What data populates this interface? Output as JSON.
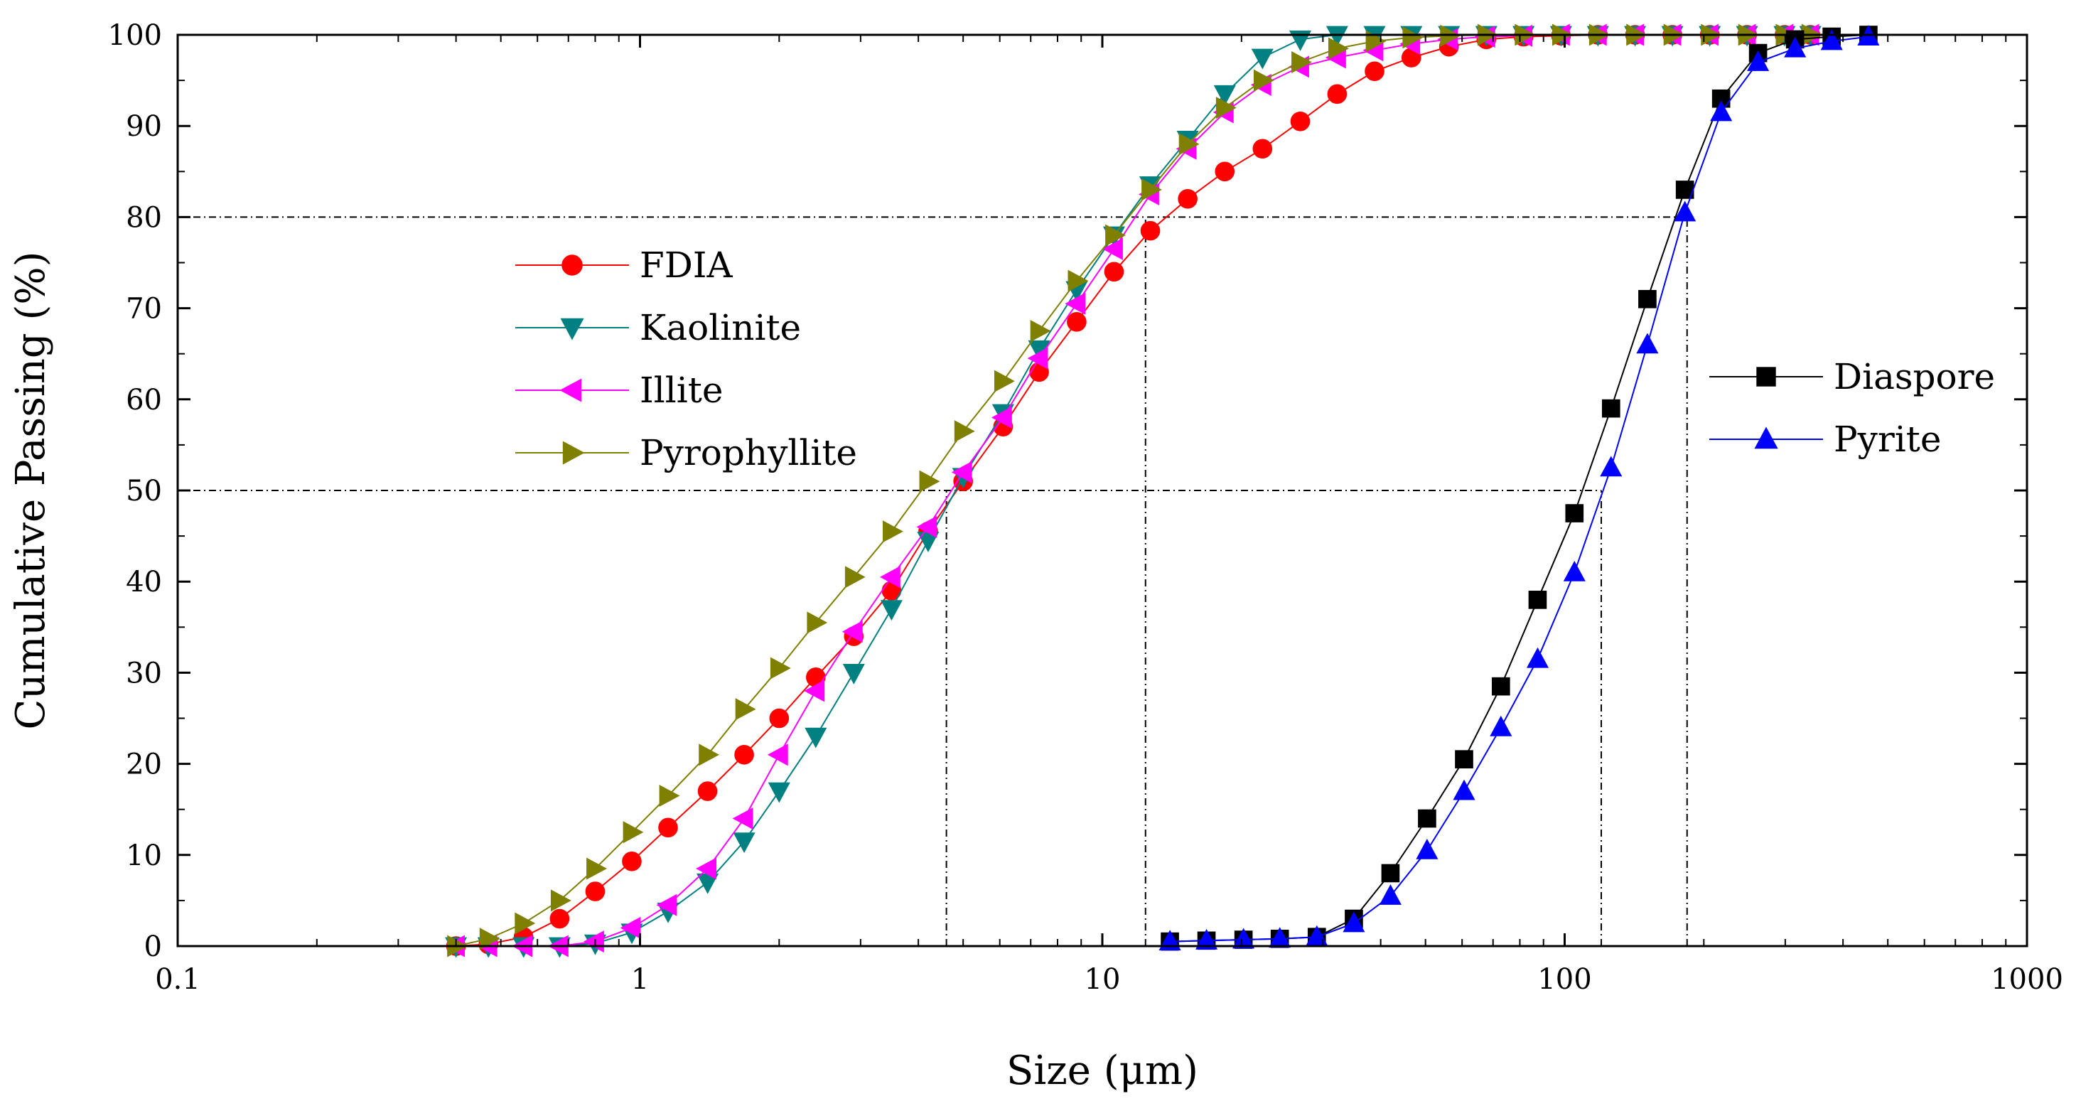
{
  "chart_data": {
    "type": "line",
    "xscale": "log",
    "xlabel": "Size (μm)",
    "ylabel": "Cumulative  Passing (%)",
    "xlim": [
      0.1,
      1000
    ],
    "ylim": [
      0,
      100
    ],
    "xticks": [
      0.1,
      1,
      10,
      100,
      1000
    ],
    "xtick_labels": [
      "0.1",
      "1",
      "10",
      "100",
      "1000"
    ],
    "yticks": [
      0,
      10,
      20,
      30,
      40,
      50,
      60,
      70,
      80,
      90,
      100
    ],
    "ytick_labels": [
      "0",
      "10",
      "20",
      "30",
      "40",
      "50",
      "60",
      "70",
      "80",
      "90",
      "100"
    ],
    "reference_lines": [
      {
        "axis": "y",
        "value": 80,
        "from_x": 0.1,
        "to_x": 184
      },
      {
        "axis": "y",
        "value": 50,
        "from_x": 0.1,
        "to_x": 120
      },
      {
        "axis": "x",
        "value": 4.6,
        "from_y": 0,
        "to_y": 50
      },
      {
        "axis": "x",
        "value": 12.4,
        "from_y": 0,
        "to_y": 80
      },
      {
        "axis": "x",
        "value": 120,
        "from_y": 0,
        "to_y": 50
      },
      {
        "axis": "x",
        "value": 184,
        "from_y": 0,
        "to_y": 80
      }
    ],
    "legend_groups": [
      {
        "position": "center-left",
        "series": [
          "FDIA",
          "Kaolinite",
          "Illite",
          "Pyrophyllite"
        ]
      },
      {
        "position": "center-right",
        "series": [
          "Diaspore",
          "Pyrite"
        ]
      }
    ],
    "series": [
      {
        "name": "FDIA",
        "color": "#ff0000",
        "marker": "circle",
        "x": [
          0.4,
          0.47,
          0.56,
          0.67,
          0.8,
          0.96,
          1.15,
          1.4,
          1.68,
          2.0,
          2.4,
          2.9,
          3.5,
          4.2,
          5.0,
          6.1,
          7.3,
          8.8,
          10.6,
          12.7,
          15.3,
          18.4,
          22.2,
          26.8,
          32.2,
          38.8,
          46.6,
          56.2,
          67.7,
          81.5,
          98.2,
          118,
          142,
          171,
          206,
          248,
          299,
          340
        ],
        "y": [
          0,
          0.2,
          1,
          3,
          6,
          9.3,
          13,
          17,
          21,
          25,
          29.5,
          34,
          39,
          45.5,
          51,
          57,
          63,
          68.5,
          74,
          78.5,
          82,
          85,
          87.5,
          90.5,
          93.5,
          96,
          97.5,
          98.7,
          99.5,
          99.8,
          99.9,
          100,
          100,
          100,
          100,
          100,
          100,
          100
        ]
      },
      {
        "name": "Kaolinite",
        "color": "#008080",
        "marker": "triangle-down",
        "x": [
          0.4,
          0.47,
          0.56,
          0.67,
          0.8,
          0.96,
          1.15,
          1.4,
          1.68,
          2.0,
          2.4,
          2.9,
          3.5,
          4.2,
          5.0,
          6.1,
          7.3,
          8.8,
          10.6,
          12.7,
          15.3,
          18.4,
          22.2,
          26.8,
          32.2,
          38.8,
          46.6,
          56.2,
          67.7,
          81.5,
          98.2,
          118,
          142,
          171,
          206,
          248,
          299,
          340
        ],
        "y": [
          0,
          0,
          0,
          0,
          0.3,
          1.5,
          3.8,
          7,
          11.5,
          17,
          23,
          30,
          37,
          44.5,
          51.5,
          58.5,
          65.5,
          72,
          78,
          83.5,
          88.5,
          93.5,
          97.5,
          99.5,
          100,
          100,
          100,
          100,
          100,
          100,
          100,
          100,
          100,
          100,
          100,
          100,
          100,
          100
        ]
      },
      {
        "name": "Illite",
        "color": "#ff00ff",
        "marker": "triangle-left",
        "x": [
          0.4,
          0.47,
          0.56,
          0.67,
          0.8,
          0.96,
          1.15,
          1.4,
          1.68,
          2.0,
          2.4,
          2.9,
          3.5,
          4.2,
          5.0,
          6.1,
          7.3,
          8.8,
          10.6,
          12.7,
          15.3,
          18.4,
          22.2,
          26.8,
          32.2,
          38.8,
          46.6,
          56.2,
          67.7,
          81.5,
          98.2,
          118,
          142,
          171,
          206,
          248,
          299,
          340
        ],
        "y": [
          0,
          0,
          0,
          0,
          0.5,
          2,
          4.5,
          8.5,
          14,
          21,
          28,
          34.5,
          40.5,
          46,
          52,
          58,
          64.5,
          70.5,
          76.5,
          82.5,
          87.5,
          91.5,
          94.5,
          96.5,
          97.5,
          98.3,
          99,
          99.5,
          99.8,
          99.9,
          100,
          100,
          100,
          100,
          100,
          100,
          100,
          100
        ]
      },
      {
        "name": "Pyrophyllite",
        "color": "#808000",
        "marker": "triangle-right",
        "x": [
          0.4,
          0.47,
          0.56,
          0.67,
          0.8,
          0.96,
          1.15,
          1.4,
          1.68,
          2.0,
          2.4,
          2.9,
          3.5,
          4.2,
          5.0,
          6.1,
          7.3,
          8.8,
          10.6,
          12.7,
          15.3,
          18.4,
          22.2,
          26.8,
          32.2,
          38.8,
          46.6,
          56.2,
          67.7,
          81.5,
          98.2,
          118,
          142,
          171,
          206,
          248,
          299,
          340
        ],
        "y": [
          0,
          0.8,
          2.5,
          5,
          8.5,
          12.5,
          16.5,
          21,
          26,
          30.5,
          35.5,
          40.5,
          45.5,
          51,
          56.5,
          62,
          67.5,
          73,
          78,
          83,
          88,
          92,
          95,
          97,
          98.5,
          99.3,
          99.7,
          99.9,
          100,
          100,
          100,
          100,
          100,
          100,
          100,
          100,
          100,
          100
        ]
      },
      {
        "name": "Diaspore",
        "color": "#000000",
        "marker": "square",
        "x": [
          14,
          16.8,
          20.2,
          24.2,
          29.1,
          35,
          42,
          50.4,
          60.6,
          72.8,
          87.4,
          105,
          126,
          151,
          182,
          218,
          262,
          315,
          378,
          454
        ],
        "y": [
          0.5,
          0.6,
          0.7,
          0.8,
          1,
          3,
          8,
          14,
          20.5,
          28.5,
          38,
          47.5,
          59,
          71,
          83,
          93,
          98,
          99.5,
          99.8,
          100
        ]
      },
      {
        "name": "Pyrite",
        "color": "#0000ff",
        "marker": "triangle-up",
        "x": [
          14,
          16.8,
          20.2,
          24.2,
          29.1,
          35,
          42,
          50.4,
          60.6,
          72.8,
          87.4,
          105,
          126,
          151,
          182,
          218,
          262,
          315,
          378,
          454
        ],
        "y": [
          0.5,
          0.6,
          0.7,
          0.8,
          1,
          2.5,
          5.5,
          10.5,
          17,
          24,
          31.5,
          41,
          52.5,
          66,
          80.5,
          91.5,
          97,
          98.5,
          99.3,
          99.8
        ]
      }
    ]
  }
}
